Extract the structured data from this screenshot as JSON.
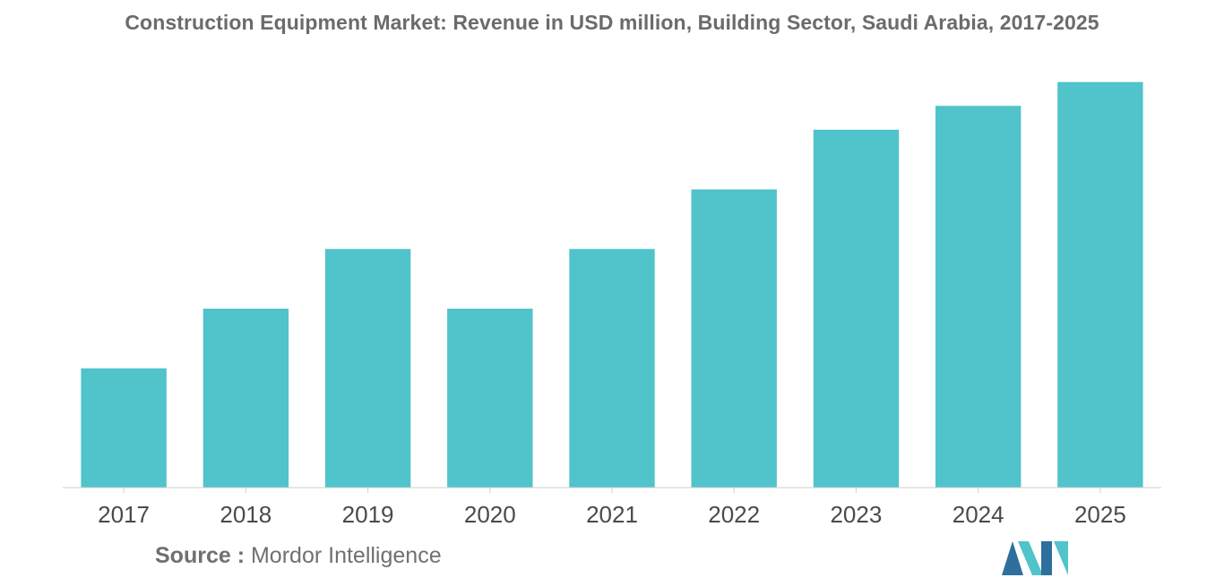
{
  "chart_data": {
    "type": "bar",
    "title": "Construction Equipment Market: Revenue in USD million, Building Sector, Saudi Arabia, 2017-2025",
    "categories": [
      "2017",
      "2018",
      "2019",
      "2020",
      "2021",
      "2022",
      "2023",
      "2024",
      "2025"
    ],
    "values": [
      2.0,
      3.0,
      4.0,
      3.0,
      4.0,
      5.0,
      6.0,
      6.4,
      6.8
    ],
    "xlabel": "",
    "ylabel": "",
    "ylim": [
      0,
      7.2
    ],
    "grid": false,
    "legend": "none",
    "bar_color": "#50c3cb",
    "axis_color": "#cfcfcf"
  },
  "source": {
    "label": "Source :",
    "value": "Mordor Intelligence"
  },
  "logo": {
    "colors": [
      "#2e6f9e",
      "#50c3cb"
    ]
  }
}
